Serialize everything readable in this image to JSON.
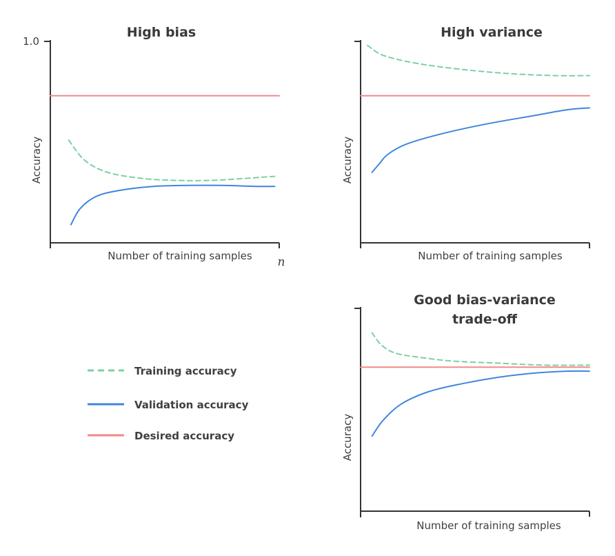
{
  "colors": {
    "training": "#7dcfa2",
    "validation": "#3f86dc",
    "desired": "#f08a8a",
    "axis": "#333333"
  },
  "legend": {
    "training_label": "Training accuracy",
    "validation_label": "Validation accuracy",
    "desired_label": "Desired accuracy"
  },
  "chart_data": [
    {
      "type": "line",
      "title": "High bias",
      "xlabel": "Number of training samples",
      "ylabel": "Accuracy",
      "ylim": [
        0,
        1.0
      ],
      "xlim": [
        0,
        1.0
      ],
      "y_tick_labels": [
        "1.0"
      ],
      "x_end_label": "n",
      "series": [
        {
          "name": "Training accuracy",
          "style": "dashed",
          "x": [
            0.08,
            0.15,
            0.25,
            0.4,
            0.55,
            0.7,
            0.85,
            0.98
          ],
          "y": [
            0.51,
            0.41,
            0.35,
            0.32,
            0.31,
            0.31,
            0.32,
            0.33
          ]
        },
        {
          "name": "Validation accuracy",
          "style": "solid",
          "x": [
            0.09,
            0.13,
            0.2,
            0.3,
            0.45,
            0.6,
            0.75,
            0.9,
            0.98
          ],
          "y": [
            0.09,
            0.17,
            0.23,
            0.26,
            0.28,
            0.285,
            0.285,
            0.28,
            0.28
          ]
        },
        {
          "name": "Desired accuracy",
          "style": "solid",
          "x": [
            0.0,
            1.0
          ],
          "y": [
            0.73,
            0.73
          ]
        }
      ]
    },
    {
      "type": "line",
      "title": "High variance",
      "xlabel": "Number of training samples",
      "ylabel": "Accuracy",
      "ylim": [
        0,
        1.0
      ],
      "xlim": [
        0,
        1.0
      ],
      "series": [
        {
          "name": "Training accuracy",
          "style": "dashed",
          "x": [
            0.03,
            0.1,
            0.25,
            0.45,
            0.65,
            0.85,
            1.0
          ],
          "y": [
            0.98,
            0.93,
            0.89,
            0.86,
            0.84,
            0.83,
            0.83
          ]
        },
        {
          "name": "Validation accuracy",
          "style": "solid",
          "x": [
            0.05,
            0.08,
            0.12,
            0.2,
            0.35,
            0.55,
            0.75,
            0.9,
            1.0
          ],
          "y": [
            0.35,
            0.39,
            0.44,
            0.49,
            0.54,
            0.59,
            0.63,
            0.66,
            0.67
          ]
        },
        {
          "name": "Desired accuracy",
          "style": "solid",
          "x": [
            0.0,
            1.0
          ],
          "y": [
            0.73,
            0.73
          ]
        }
      ]
    },
    {
      "type": "line",
      "title": "Good bias-variance trade-off",
      "title_lines": [
        "Good bias-variance",
        "trade-off"
      ],
      "xlabel": "Number of training samples",
      "ylabel": "Accuracy",
      "ylim": [
        0,
        1.0
      ],
      "xlim": [
        0,
        1.0
      ],
      "series": [
        {
          "name": "Training accuracy",
          "style": "dashed",
          "x": [
            0.05,
            0.09,
            0.15,
            0.25,
            0.4,
            0.6,
            0.8,
            1.0
          ],
          "y": [
            0.88,
            0.82,
            0.78,
            0.76,
            0.74,
            0.73,
            0.72,
            0.72
          ]
        },
        {
          "name": "Validation accuracy",
          "style": "solid",
          "x": [
            0.05,
            0.1,
            0.18,
            0.3,
            0.45,
            0.6,
            0.75,
            0.9,
            1.0
          ],
          "y": [
            0.37,
            0.45,
            0.53,
            0.59,
            0.63,
            0.66,
            0.68,
            0.69,
            0.69
          ]
        },
        {
          "name": "Desired accuracy",
          "style": "solid",
          "x": [
            0.0,
            1.0
          ],
          "y": [
            0.71,
            0.71
          ]
        }
      ]
    }
  ]
}
